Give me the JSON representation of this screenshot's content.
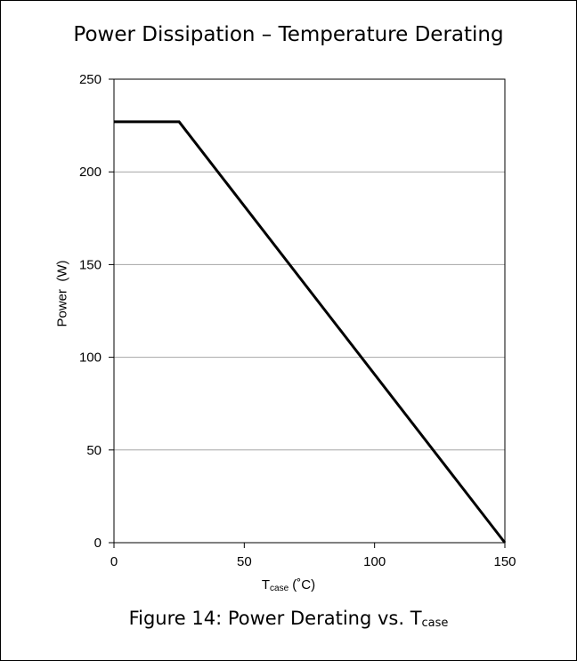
{
  "title": "Power Dissipation – Temperature Derating",
  "caption": {
    "prefix": "Figure 14: Power Derating vs. T",
    "subscript": "case"
  },
  "chart_data": {
    "type": "line",
    "title": "Power Dissipation – Temperature Derating",
    "xlabel": {
      "main": "T",
      "sub": "case",
      "unit": " (˚C)"
    },
    "ylabel": "Power  (W)",
    "xlim": [
      0,
      150
    ],
    "ylim": [
      0,
      250
    ],
    "xticks": [
      0,
      50,
      100,
      150
    ],
    "yticks": [
      0,
      50,
      100,
      150,
      200,
      250
    ],
    "grid": {
      "horizontal": true,
      "vertical": false
    },
    "series": [
      {
        "x": [
          0,
          25,
          150
        ],
        "y": [
          227,
          227,
          0
        ]
      }
    ],
    "colors": {
      "line": "#000000",
      "grid": "#a6a6a6",
      "axis": "#000000"
    }
  }
}
